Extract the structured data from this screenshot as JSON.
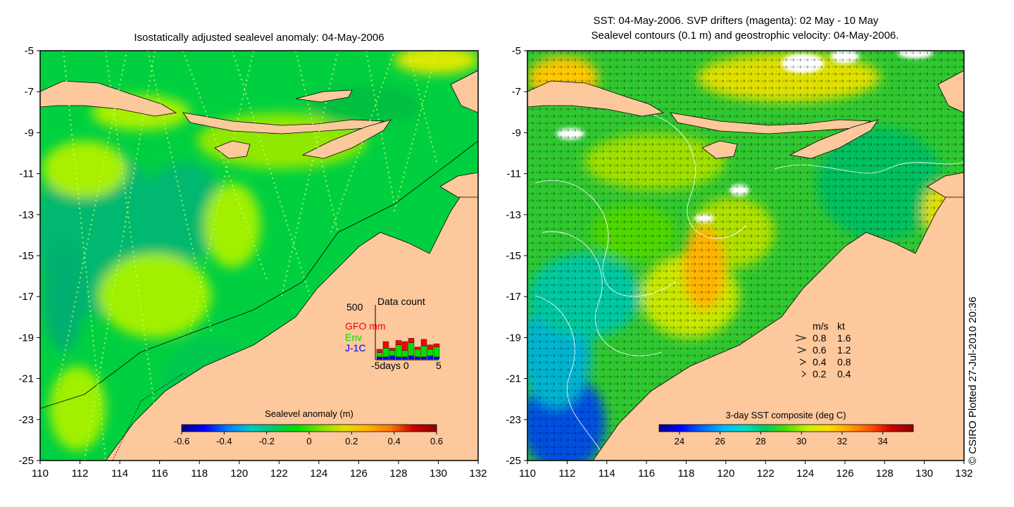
{
  "left_map": {
    "title": "Isostatically adjusted sealevel anomaly: 04-May-2006",
    "x_ticks": [
      "110",
      "112",
      "114",
      "116",
      "118",
      "120",
      "122",
      "124",
      "126",
      "128",
      "130",
      "132"
    ],
    "y_ticks": [
      "-5",
      "-7",
      "-9",
      "-11",
      "-13",
      "-15",
      "-17",
      "-19",
      "-21",
      "-23",
      "-25"
    ],
    "colorbar": {
      "title": "Sealevel anomaly (m)",
      "ticks": [
        "-0.6",
        "-0.4",
        "-0.2",
        "0",
        "0.2",
        "0.4",
        "0.6"
      ],
      "range": [
        -0.6,
        0.6
      ],
      "colors": [
        "#00008b",
        "#0000ff",
        "#0080ff",
        "#00c8c8",
        "#00c864",
        "#00e000",
        "#80e000",
        "#e0e000",
        "#ffb400",
        "#ff7800",
        "#c80000",
        "#8b0000"
      ]
    },
    "data_count_panel": {
      "title": "Data count",
      "ymax_label": "500",
      "series": [
        {
          "name": "GFO mm",
          "color": "#ff0000"
        },
        {
          "name": "Env",
          "color": "#00e000"
        },
        {
          "name": "J-1C",
          "color": "#0000ff"
        }
      ],
      "x_label": "-5days 0",
      "x_end": "5",
      "days": [
        -5,
        -4,
        -3,
        -2,
        -1,
        0,
        1,
        2,
        3,
        4
      ],
      "counts": {
        "J-1C": [
          20,
          20,
          30,
          20,
          20,
          30,
          20,
          20,
          30,
          20
        ],
        "Env": [
          40,
          80,
          50,
          110,
          60,
          120,
          70,
          100,
          60,
          90
        ],
        "GFO mm": [
          30,
          60,
          20,
          40,
          80,
          40,
          20,
          60,
          40,
          30
        ]
      }
    },
    "colors": {
      "land": "#fcc89c",
      "ocean_base": "#00c850",
      "high": "#a0f000"
    }
  },
  "right_map": {
    "title_line1": "SST: 04-May-2006. SVP drifters (magenta): 02 May - 10 May",
    "title_line2": "Sealevel contours (0.1 m) and geostrophic velocity: 04-May-2006.",
    "x_ticks": [
      "110",
      "112",
      "114",
      "116",
      "118",
      "120",
      "122",
      "124",
      "126",
      "128",
      "130",
      "132"
    ],
    "y_ticks": [
      "-5",
      "-7",
      "-9",
      "-11",
      "-13",
      "-15",
      "-17",
      "-19",
      "-21",
      "-23",
      "-25"
    ],
    "colorbar": {
      "title": "3-day SST composite (deg C)",
      "ticks": [
        "24",
        "26",
        "28",
        "30",
        "32",
        "34"
      ],
      "range": [
        23,
        35.5
      ],
      "colors": [
        "#00008b",
        "#0000ff",
        "#0064ff",
        "#00b4ff",
        "#00dcc8",
        "#00c864",
        "#50dc00",
        "#c8f000",
        "#ffdc00",
        "#ffa000",
        "#ff5000",
        "#c80000",
        "#8b0000"
      ]
    },
    "velocity_legend": {
      "headers": [
        "m/s",
        "kt"
      ],
      "rows": [
        [
          "0.8",
          "1.6"
        ],
        [
          "0.6",
          "1.2"
        ],
        [
          "0.4",
          "0.8"
        ],
        [
          "0.2",
          "0.4"
        ]
      ]
    }
  },
  "credit": "© CSIRO Plotted 27-Jul-2010 20:36"
}
